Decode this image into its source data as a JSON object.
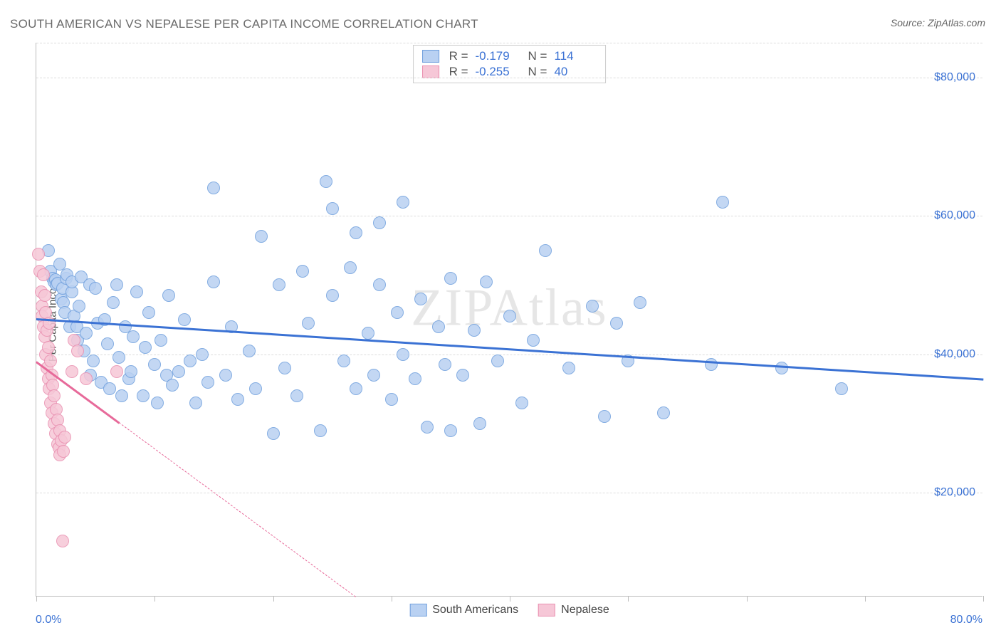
{
  "title": "SOUTH AMERICAN VS NEPALESE PER CAPITA INCOME CORRELATION CHART",
  "source": "Source: ZipAtlas.com",
  "watermark": "ZIPAtlas",
  "y_label": "Per Capita Income",
  "x_min_label": "0.0%",
  "x_max_label": "80.0%",
  "chart": {
    "type": "scatter",
    "xlim": [
      0,
      80
    ],
    "ylim": [
      5000,
      85000
    ],
    "y_ticks": [
      20000,
      40000,
      60000,
      80000
    ],
    "y_tick_labels": [
      "$20,000",
      "$40,000",
      "$60,000",
      "$80,000"
    ],
    "x_ticks": [
      0,
      10,
      20,
      30,
      40,
      50,
      60,
      70,
      80
    ],
    "background_color": "#ffffff",
    "grid_color": "#dcdcdc",
    "border_color": "#bcbcbc",
    "marker_radius": 9,
    "series": [
      {
        "name": "South Americans",
        "fill": "#b9d1f2",
        "stroke": "#6f9fdd",
        "trend_color": "#3b72d4",
        "R": "-0.179",
        "N": "114",
        "trend": {
          "x1": 0,
          "y1": 45200,
          "x2": 80,
          "y2": 36500,
          "solid_until_x": 80
        },
        "points": [
          [
            1.0,
            55000
          ],
          [
            1.2,
            52000
          ],
          [
            1.4,
            51000
          ],
          [
            1.5,
            50500
          ],
          [
            1.6,
            50800
          ],
          [
            1.7,
            50000
          ],
          [
            1.8,
            50200
          ],
          [
            2.0,
            53000
          ],
          [
            2.1,
            48000
          ],
          [
            2.2,
            49500
          ],
          [
            2.3,
            47500
          ],
          [
            2.4,
            46000
          ],
          [
            2.5,
            51000
          ],
          [
            2.6,
            51500
          ],
          [
            2.8,
            44000
          ],
          [
            3.0,
            49000
          ],
          [
            3.0,
            50500
          ],
          [
            3.2,
            45500
          ],
          [
            3.4,
            44000
          ],
          [
            3.5,
            42000
          ],
          [
            3.6,
            47000
          ],
          [
            3.8,
            51200
          ],
          [
            4.0,
            40500
          ],
          [
            4.2,
            43000
          ],
          [
            4.5,
            50000
          ],
          [
            4.6,
            37000
          ],
          [
            4.8,
            39000
          ],
          [
            5.0,
            49500
          ],
          [
            5.2,
            44500
          ],
          [
            5.5,
            36000
          ],
          [
            5.8,
            45000
          ],
          [
            6.0,
            41500
          ],
          [
            6.2,
            35000
          ],
          [
            6.5,
            47500
          ],
          [
            6.8,
            50000
          ],
          [
            7.0,
            39500
          ],
          [
            7.2,
            34000
          ],
          [
            7.5,
            44000
          ],
          [
            7.8,
            36500
          ],
          [
            8.0,
            37500
          ],
          [
            8.2,
            42500
          ],
          [
            8.5,
            49000
          ],
          [
            9.0,
            34000
          ],
          [
            9.2,
            41000
          ],
          [
            9.5,
            46000
          ],
          [
            10.0,
            38500
          ],
          [
            10.2,
            33000
          ],
          [
            10.5,
            42000
          ],
          [
            11.0,
            37000
          ],
          [
            11.2,
            48500
          ],
          [
            11.5,
            35500
          ],
          [
            12.0,
            37500
          ],
          [
            12.5,
            45000
          ],
          [
            13.0,
            39000
          ],
          [
            13.5,
            33000
          ],
          [
            14.0,
            40000
          ],
          [
            14.5,
            36000
          ],
          [
            15.0,
            50500
          ],
          [
            15.0,
            64000
          ],
          [
            16.0,
            37000
          ],
          [
            16.5,
            44000
          ],
          [
            17.0,
            33500
          ],
          [
            18.0,
            40500
          ],
          [
            18.5,
            35000
          ],
          [
            19.0,
            57000
          ],
          [
            20.0,
            28500
          ],
          [
            20.5,
            50000
          ],
          [
            21.0,
            38000
          ],
          [
            22.0,
            34000
          ],
          [
            22.5,
            52000
          ],
          [
            23.0,
            44500
          ],
          [
            24.0,
            29000
          ],
          [
            24.5,
            65000
          ],
          [
            25.0,
            48500
          ],
          [
            25.0,
            61000
          ],
          [
            26.0,
            39000
          ],
          [
            26.5,
            52500
          ],
          [
            27.0,
            35000
          ],
          [
            27.0,
            57500
          ],
          [
            28.0,
            43000
          ],
          [
            28.5,
            37000
          ],
          [
            29.0,
            50000
          ],
          [
            29.0,
            59000
          ],
          [
            30.0,
            33500
          ],
          [
            30.5,
            46000
          ],
          [
            31.0,
            40000
          ],
          [
            31.0,
            62000
          ],
          [
            32.0,
            36500
          ],
          [
            32.5,
            48000
          ],
          [
            33.0,
            29500
          ],
          [
            34.0,
            44000
          ],
          [
            34.5,
            38500
          ],
          [
            35.0,
            51000
          ],
          [
            35.0,
            29000
          ],
          [
            36.0,
            37000
          ],
          [
            37.0,
            43500
          ],
          [
            37.5,
            30000
          ],
          [
            38.0,
            50500
          ],
          [
            39.0,
            39000
          ],
          [
            40.0,
            45500
          ],
          [
            41.0,
            33000
          ],
          [
            42.0,
            42000
          ],
          [
            43.0,
            55000
          ],
          [
            45.0,
            38000
          ],
          [
            47.0,
            47000
          ],
          [
            48.0,
            31000
          ],
          [
            49.0,
            44500
          ],
          [
            50.0,
            39000
          ],
          [
            51.0,
            47500
          ],
          [
            53.0,
            31500
          ],
          [
            57.0,
            38500
          ],
          [
            58.0,
            62000
          ],
          [
            63.0,
            38000
          ],
          [
            68.0,
            35000
          ]
        ]
      },
      {
        "name": "Nepalese",
        "fill": "#f6c7d7",
        "stroke": "#e98fb0",
        "trend_color": "#e76a9a",
        "R": "-0.255",
        "N": "40",
        "trend": {
          "x1": 0,
          "y1": 39000,
          "x2": 27,
          "y2": 5000,
          "solid_until_x": 7
        },
        "points": [
          [
            0.2,
            54500
          ],
          [
            0.3,
            52000
          ],
          [
            0.4,
            49000
          ],
          [
            0.5,
            47000
          ],
          [
            0.5,
            45500
          ],
          [
            0.6,
            51500
          ],
          [
            0.6,
            44000
          ],
          [
            0.7,
            42500
          ],
          [
            0.7,
            48500
          ],
          [
            0.8,
            40000
          ],
          [
            0.8,
            46000
          ],
          [
            0.9,
            43500
          ],
          [
            0.9,
            38000
          ],
          [
            1.0,
            41000
          ],
          [
            1.0,
            36500
          ],
          [
            1.1,
            44500
          ],
          [
            1.1,
            35000
          ],
          [
            1.2,
            39000
          ],
          [
            1.2,
            33000
          ],
          [
            1.3,
            37000
          ],
          [
            1.3,
            31500
          ],
          [
            1.4,
            35500
          ],
          [
            1.5,
            30000
          ],
          [
            1.5,
            34000
          ],
          [
            1.6,
            28500
          ],
          [
            1.7,
            32000
          ],
          [
            1.8,
            27000
          ],
          [
            1.8,
            30500
          ],
          [
            1.9,
            26500
          ],
          [
            2.0,
            29000
          ],
          [
            2.0,
            25500
          ],
          [
            2.1,
            27500
          ],
          [
            2.2,
            13000
          ],
          [
            2.3,
            26000
          ],
          [
            2.4,
            28000
          ],
          [
            3.0,
            37500
          ],
          [
            3.2,
            42000
          ],
          [
            3.5,
            40500
          ],
          [
            4.2,
            36500
          ],
          [
            6.8,
            37500
          ]
        ]
      }
    ]
  },
  "stats_legend": {
    "R_label": "R =",
    "N_label": "N ="
  },
  "bottom_legend": {
    "label1": "South Americans",
    "label2": "Nepalese"
  }
}
